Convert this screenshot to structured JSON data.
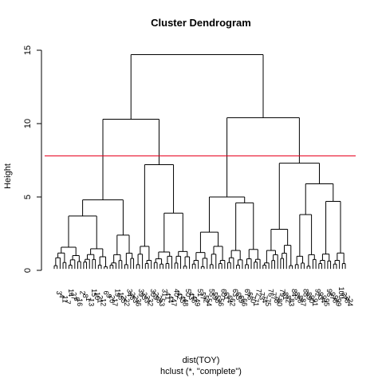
{
  "chart_data": {
    "type": "dendrogram",
    "title": "Cluster Dendrogram",
    "ylabel": "Height",
    "xlabel": "dist(TOY)",
    "sub": "hclust (*, \"complete\")",
    "ylim": [
      0,
      15
    ],
    "yticks": [
      "0",
      "5",
      "10",
      "15"
    ],
    "cut_line": {
      "height": 7.8,
      "color": "#e8001c"
    },
    "merges": [
      {
        "left": [
          0,
          46
        ],
        "right": [
          47,
          99
        ],
        "height": 14.7
      },
      {
        "left": [
          0,
          27
        ],
        "right": [
          28,
          46
        ],
        "height": 10.3
      },
      {
        "left": [
          47,
          70
        ],
        "right": [
          71,
          99
        ],
        "height": 10.4
      },
      {
        "left": [
          0,
          18
        ],
        "right": [
          19,
          27
        ],
        "height": 4.8
      },
      {
        "left": [
          28,
          33
        ],
        "right": [
          34,
          46
        ],
        "height": 7.2
      },
      {
        "left": [
          47,
          58
        ],
        "right": [
          59,
          70
        ],
        "height": 5.0
      },
      {
        "left": [
          71,
          81
        ],
        "right": [
          82,
          99
        ],
        "height": 7.3
      },
      {
        "left": [
          82,
          89
        ],
        "right": [
          90,
          99
        ],
        "height": 5.9
      },
      {
        "left": [
          0,
          9
        ],
        "right": [
          10,
          18
        ],
        "height": 3.7
      },
      {
        "left": [
          19,
          23
        ],
        "right": [
          24,
          27
        ],
        "height": 2.4
      },
      {
        "left": [
          34,
          40
        ],
        "right": [
          41,
          46
        ],
        "height": 3.9
      },
      {
        "left": [
          47,
          52
        ],
        "right": [
          53,
          58
        ],
        "height": 2.6
      },
      {
        "left": [
          59,
          64
        ],
        "right": [
          65,
          70
        ],
        "height": 4.6
      },
      {
        "left": [
          71,
          76
        ],
        "right": [
          77,
          81
        ],
        "height": 2.8
      },
      {
        "left": [
          82,
          85
        ],
        "right": [
          86,
          89
        ],
        "height": 3.8
      },
      {
        "left": [
          90,
          94
        ],
        "right": [
          95,
          99
        ],
        "height": 4.7
      }
    ],
    "cluster_heights": [
      1.8,
      1.4,
      2.3,
      2.0,
      1.7,
      1.5,
      1.8,
      2.2,
      1.6,
      1.9,
      2.1,
      1.3,
      2.6,
      1.7,
      1.5,
      1.2,
      2.4,
      1.9,
      1.6,
      2.8
    ],
    "leaves": [
      "3",
      "4",
      "11",
      "7",
      "14",
      "27",
      "5",
      "16",
      "2",
      "8",
      "1",
      "13",
      "15",
      "10",
      "21",
      "12",
      "6",
      "9",
      "20",
      "17",
      "19",
      "18",
      "25",
      "22",
      "34",
      "26",
      "23",
      "36",
      "39",
      "35",
      "33",
      "32",
      "30",
      "29",
      "28",
      "53",
      "31",
      "41",
      "44",
      "47",
      "40",
      "42",
      "45",
      "48",
      "50",
      "43",
      "46",
      "49",
      "51",
      "57",
      "52",
      "54",
      "55",
      "59",
      "58",
      "56",
      "60",
      "61",
      "64",
      "62",
      "63",
      "65",
      "69",
      "66",
      "67",
      "68",
      "70",
      "71",
      "72",
      "73",
      "74",
      "75",
      "76",
      "77",
      "78",
      "80",
      "79",
      "81",
      "82",
      "83",
      "84",
      "85",
      "86",
      "87",
      "88",
      "89",
      "90",
      "91",
      "92",
      "93",
      "94",
      "95",
      "96",
      "97",
      "98",
      "99",
      "100",
      "37",
      "38",
      "24"
    ]
  }
}
